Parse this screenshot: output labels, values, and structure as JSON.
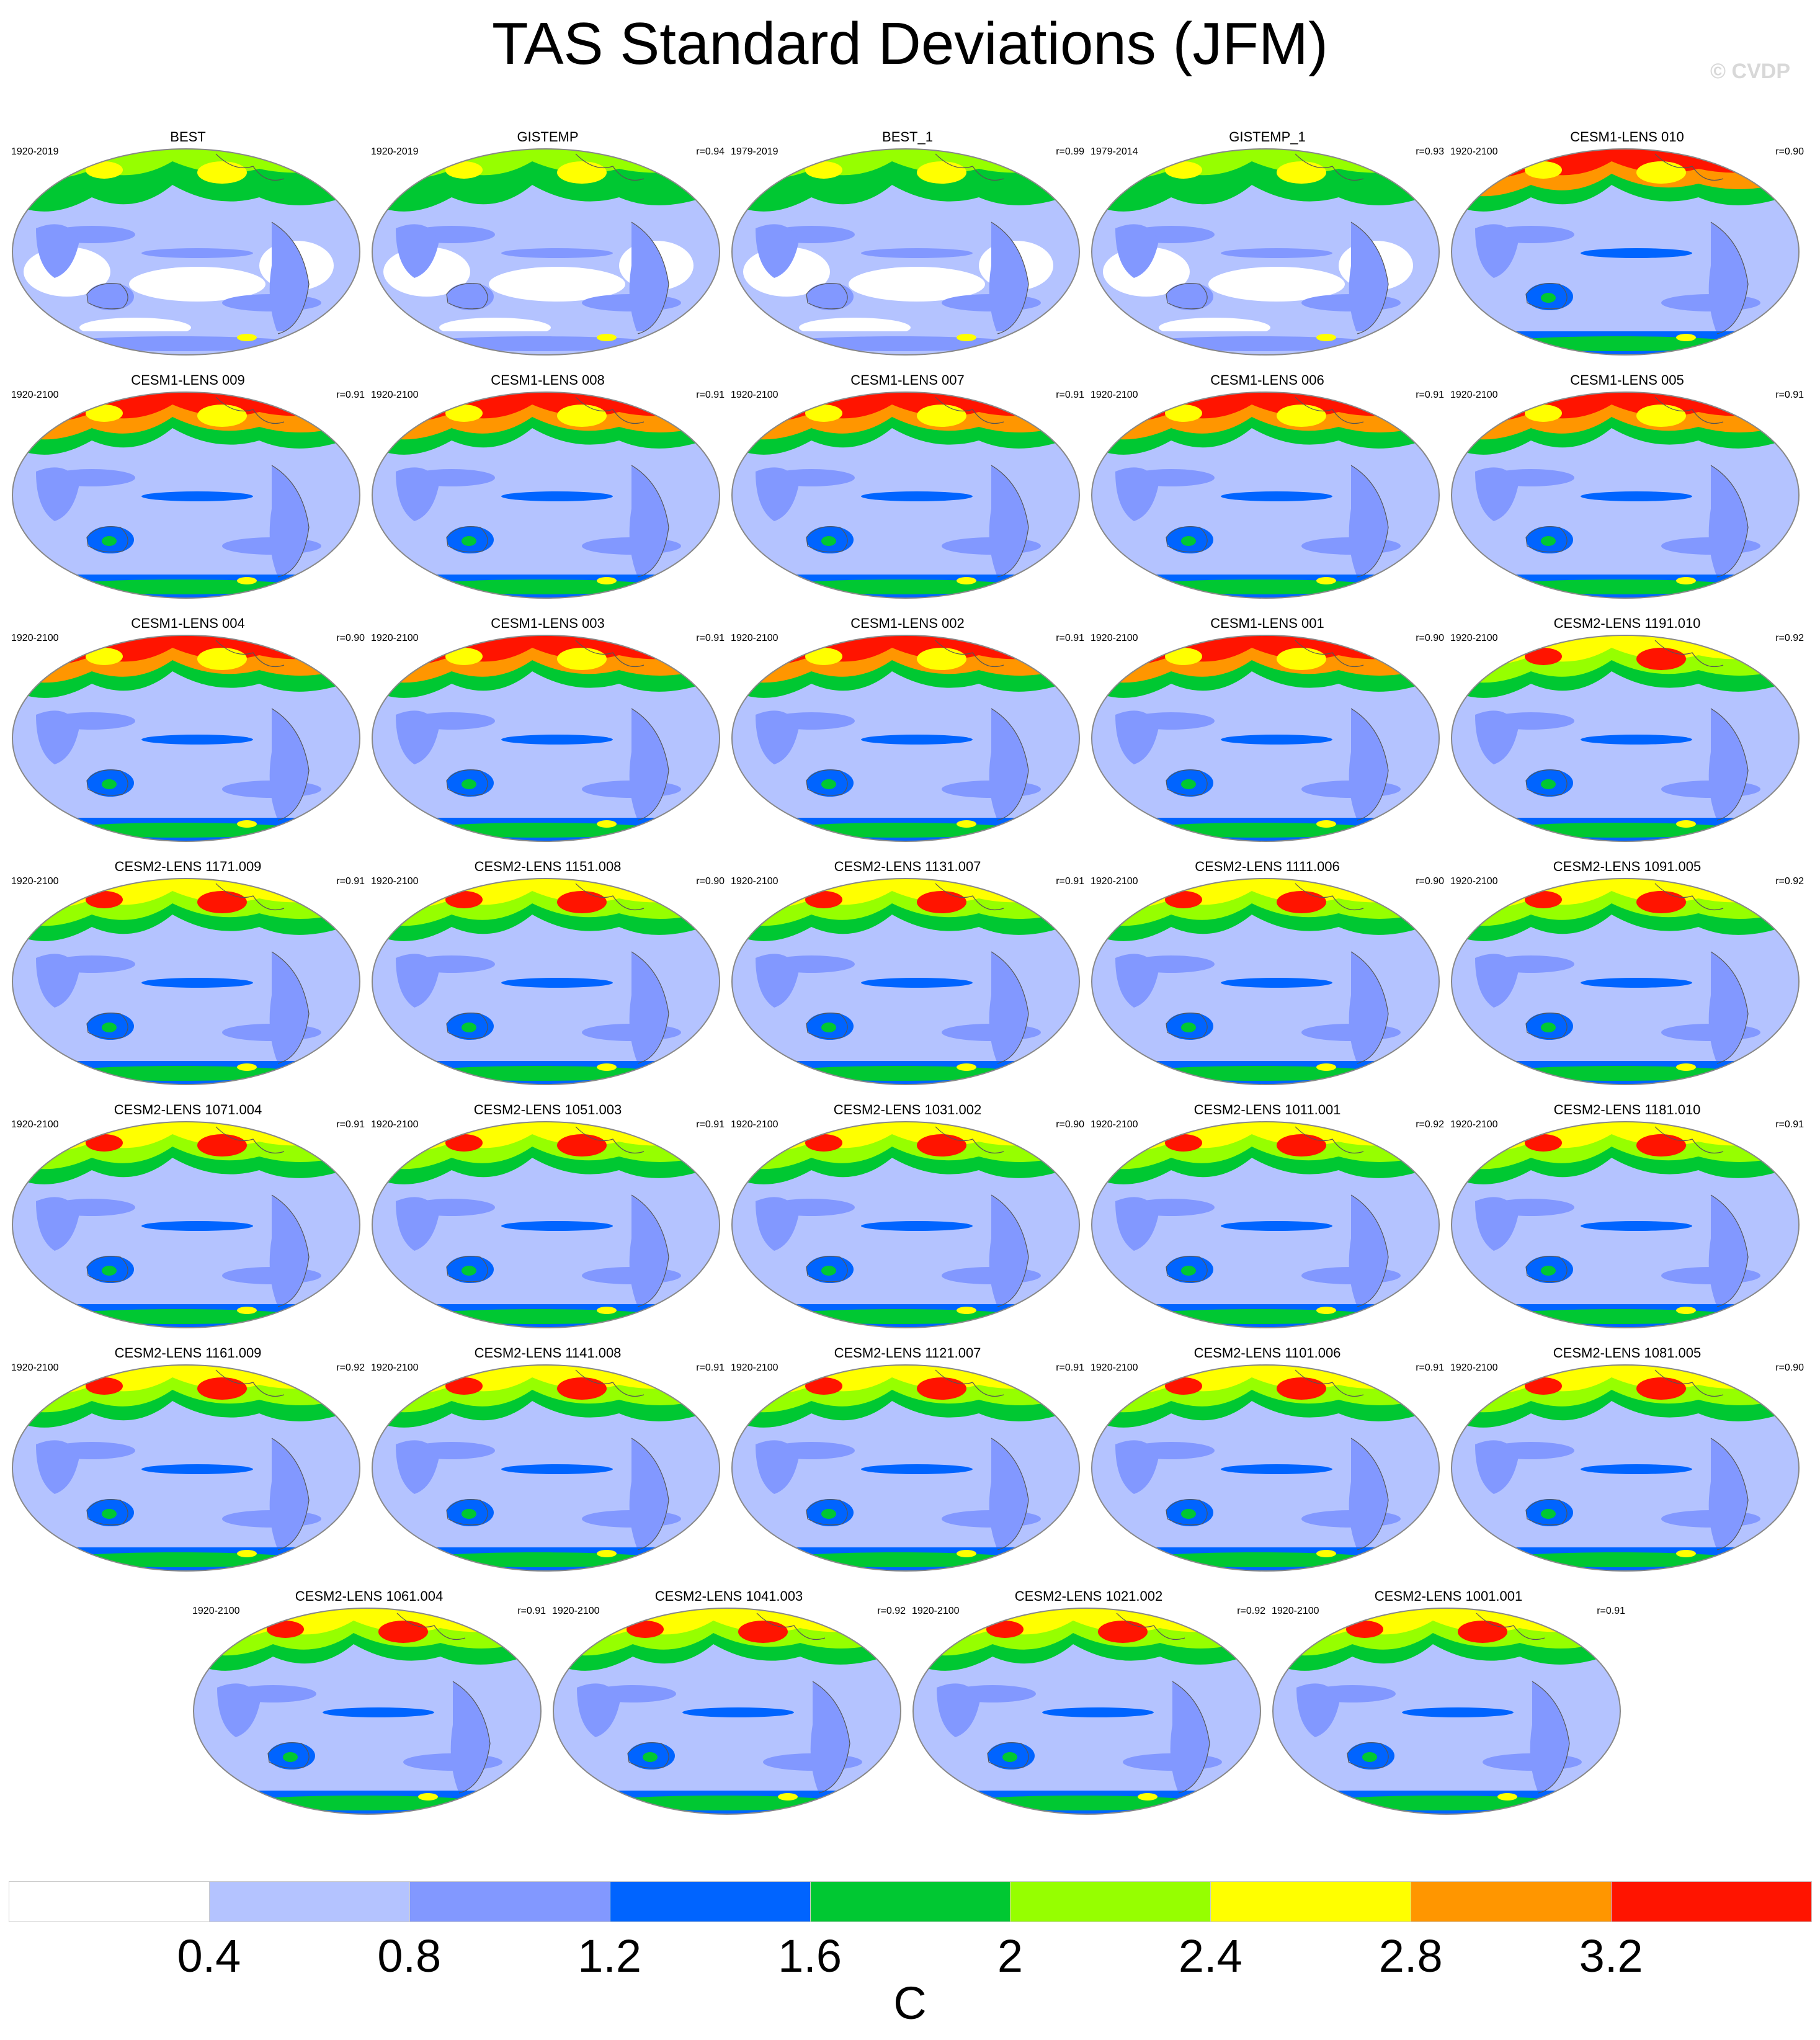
{
  "title": "TAS Standard Deviations (JFM)",
  "watermark": "© CVDP",
  "colorbar": {
    "unit": "C",
    "ticks": [
      "0.4",
      "0.8",
      "1.2",
      "1.6",
      "2",
      "2.4",
      "2.8",
      "3.2"
    ],
    "colors": [
      "#ffffff",
      "#b4c3ff",
      "#8298ff",
      "#0064ff",
      "#00c832",
      "#96ff00",
      "#ffff00",
      "#ff9600",
      "#ff1400"
    ]
  },
  "colors": {
    "land_outline": "#555555",
    "globe_outline": "#888888"
  },
  "panels": [
    {
      "title": "BEST",
      "years": "1920-2019",
      "r": "",
      "style": "obs"
    },
    {
      "title": "GISTEMP",
      "years": "1920-2019",
      "r": "r=0.94",
      "style": "obs"
    },
    {
      "title": "BEST_1",
      "years": "1979-2019",
      "r": "r=0.99",
      "style": "obs"
    },
    {
      "title": "GISTEMP_1",
      "years": "1979-2014",
      "r": "r=0.93",
      "style": "obs"
    },
    {
      "title": "CESM1-LENS 010",
      "years": "1920-2100",
      "r": "r=0.90",
      "style": "cesm1"
    },
    {
      "title": "CESM1-LENS 009",
      "years": "1920-2100",
      "r": "r=0.91",
      "style": "cesm1"
    },
    {
      "title": "CESM1-LENS 008",
      "years": "1920-2100",
      "r": "r=0.91",
      "style": "cesm1"
    },
    {
      "title": "CESM1-LENS 007",
      "years": "1920-2100",
      "r": "r=0.91",
      "style": "cesm1"
    },
    {
      "title": "CESM1-LENS 006",
      "years": "1920-2100",
      "r": "r=0.91",
      "style": "cesm1"
    },
    {
      "title": "CESM1-LENS 005",
      "years": "1920-2100",
      "r": "r=0.91",
      "style": "cesm1"
    },
    {
      "title": "CESM1-LENS 004",
      "years": "1920-2100",
      "r": "r=0.90",
      "style": "cesm1"
    },
    {
      "title": "CESM1-LENS 003",
      "years": "1920-2100",
      "r": "r=0.91",
      "style": "cesm1"
    },
    {
      "title": "CESM1-LENS 002",
      "years": "1920-2100",
      "r": "r=0.91",
      "style": "cesm1"
    },
    {
      "title": "CESM1-LENS 001",
      "years": "1920-2100",
      "r": "r=0.90",
      "style": "cesm1"
    },
    {
      "title": "CESM2-LENS 1191.010",
      "years": "1920-2100",
      "r": "r=0.92",
      "style": "cesm2"
    },
    {
      "title": "CESM2-LENS 1171.009",
      "years": "1920-2100",
      "r": "r=0.91",
      "style": "cesm2"
    },
    {
      "title": "CESM2-LENS 1151.008",
      "years": "1920-2100",
      "r": "r=0.90",
      "style": "cesm2"
    },
    {
      "title": "CESM2-LENS 1131.007",
      "years": "1920-2100",
      "r": "r=0.91",
      "style": "cesm2"
    },
    {
      "title": "CESM2-LENS 1111.006",
      "years": "1920-2100",
      "r": "r=0.90",
      "style": "cesm2"
    },
    {
      "title": "CESM2-LENS 1091.005",
      "years": "1920-2100",
      "r": "r=0.92",
      "style": "cesm2"
    },
    {
      "title": "CESM2-LENS 1071.004",
      "years": "1920-2100",
      "r": "r=0.91",
      "style": "cesm2"
    },
    {
      "title": "CESM2-LENS 1051.003",
      "years": "1920-2100",
      "r": "r=0.91",
      "style": "cesm2"
    },
    {
      "title": "CESM2-LENS 1031.002",
      "years": "1920-2100",
      "r": "r=0.90",
      "style": "cesm2"
    },
    {
      "title": "CESM2-LENS 1011.001",
      "years": "1920-2100",
      "r": "r=0.92",
      "style": "cesm2"
    },
    {
      "title": "CESM2-LENS 1181.010",
      "years": "1920-2100",
      "r": "r=0.91",
      "style": "cesm2"
    },
    {
      "title": "CESM2-LENS 1161.009",
      "years": "1920-2100",
      "r": "r=0.92",
      "style": "cesm2"
    },
    {
      "title": "CESM2-LENS 1141.008",
      "years": "1920-2100",
      "r": "r=0.91",
      "style": "cesm2"
    },
    {
      "title": "CESM2-LENS 1121.007",
      "years": "1920-2100",
      "r": "r=0.91",
      "style": "cesm2"
    },
    {
      "title": "CESM2-LENS 1101.006",
      "years": "1920-2100",
      "r": "r=0.91",
      "style": "cesm2"
    },
    {
      "title": "CESM2-LENS 1081.005",
      "years": "1920-2100",
      "r": "r=0.90",
      "style": "cesm2"
    },
    {
      "title": "CESM2-LENS 1061.004",
      "years": "1920-2100",
      "r": "r=0.91",
      "style": "cesm2"
    },
    {
      "title": "CESM2-LENS 1041.003",
      "years": "1920-2100",
      "r": "r=0.92",
      "style": "cesm2"
    },
    {
      "title": "CESM2-LENS 1021.002",
      "years": "1920-2100",
      "r": "r=0.92",
      "style": "cesm2"
    },
    {
      "title": "CESM2-LENS 1001.001",
      "years": "1920-2100",
      "r": "r=0.91",
      "style": "cesm2"
    }
  ]
}
